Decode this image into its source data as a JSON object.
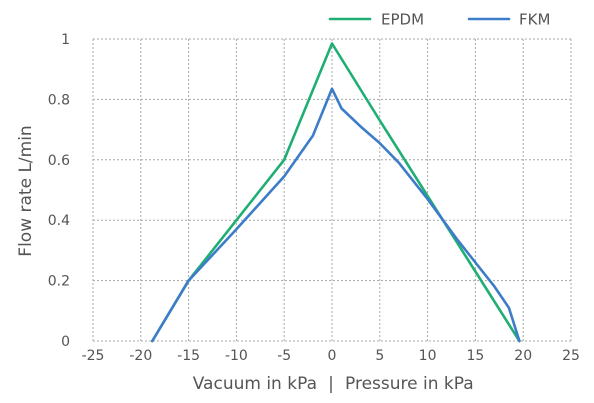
{
  "chart_data": {
    "type": "line",
    "xlabel_left": "Vacuum in kPa",
    "xlabel_sep": "|",
    "xlabel_right": "Pressure in kPa",
    "ylabel": "Flow rate L/min",
    "xlim": [
      -25,
      25
    ],
    "ylim": [
      0,
      1
    ],
    "x_ticks": [
      "-25",
      "-20",
      "-15",
      "-10",
      "-5",
      "0",
      "5",
      "10",
      "15",
      "20",
      "25"
    ],
    "x_tick_values": [
      -25,
      -20,
      -15,
      -10,
      -5,
      0,
      5,
      10,
      15,
      20,
      25
    ],
    "y_ticks": [
      "0",
      "0.2",
      "0.4",
      "0.6",
      "0.8",
      "1"
    ],
    "y_tick_values": [
      0,
      0.2,
      0.4,
      0.6,
      0.8,
      1
    ],
    "grid": true,
    "legend_position": "top-right",
    "series": [
      {
        "name": "EPDM",
        "color": "#1fae74",
        "x": [
          -18.8,
          -15,
          -10,
          -5,
          0,
          5,
          10,
          15,
          19.6
        ],
        "y": [
          0,
          0.2,
          0.4,
          0.6,
          0.985,
          0.73,
          0.48,
          0.23,
          0
        ]
      },
      {
        "name": "FKM",
        "color": "#3d7cc9",
        "x": [
          -18.8,
          -15,
          -10,
          -5,
          -2,
          0,
          1,
          3,
          5,
          7,
          10,
          13,
          15,
          17,
          18.5,
          19.6
        ],
        "y": [
          0,
          0.2,
          0.37,
          0.545,
          0.68,
          0.835,
          0.77,
          0.71,
          0.655,
          0.59,
          0.47,
          0.34,
          0.26,
          0.18,
          0.11,
          0
        ]
      }
    ]
  }
}
